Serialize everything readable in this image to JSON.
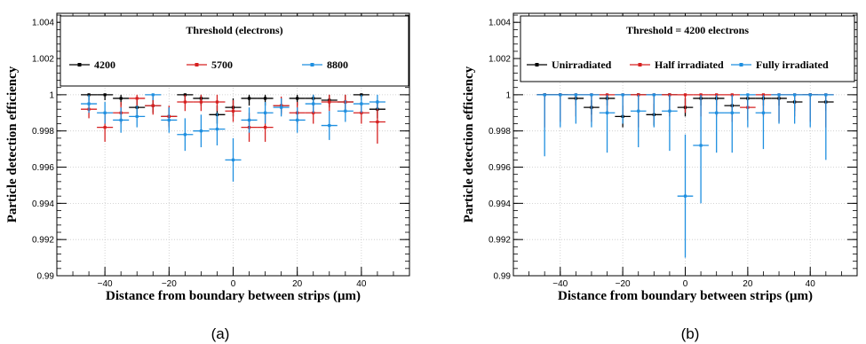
{
  "chart_data": [
    {
      "type": "scatter",
      "caption": "(a)",
      "xlabel": "Distance from boundary between strips (μm)",
      "ylabel": "Particle detection efficiency",
      "xlim": [
        -55,
        55
      ],
      "ylim": [
        0.99,
        1.0045
      ],
      "xticks": [
        -40,
        -20,
        0,
        20,
        40
      ],
      "xtick_labels": [
        "−40",
        "−20",
        "0",
        "20",
        "40"
      ],
      "yticks": [
        0.99,
        0.992,
        0.994,
        0.996,
        0.998,
        1.0,
        1.002,
        1.004
      ],
      "ytick_labels": [
        "0.99",
        "0.992",
        "0.994",
        "0.996",
        "0.998",
        "1",
        "1.002",
        "1.004"
      ],
      "grid": true,
      "legend_title": "Threshold (electrons)",
      "legend_position": "top",
      "series": [
        {
          "name": "4200",
          "color": "#000000",
          "xerr": 2.5,
          "x": [
            -45,
            -40,
            -35,
            -30,
            -25,
            -20,
            -15,
            -10,
            -5,
            0,
            5,
            10,
            15,
            20,
            25,
            30,
            35,
            40,
            45
          ],
          "y": [
            1.0,
            1.0,
            0.9998,
            0.9993,
            0.9994,
            0.9988,
            1.0,
            0.9998,
            0.9989,
            0.9993,
            0.9998,
            0.9998,
            0.9994,
            0.9998,
            0.9998,
            0.9997,
            0.9996,
            1.0,
            0.9992
          ],
          "err": [
            0.0003,
            0.0003,
            0.0004,
            0.0004,
            0.0004,
            0.0005,
            0.0003,
            0.0004,
            0.0005,
            0.0005,
            0.0004,
            0.0004,
            0.0004,
            0.0004,
            0.0004,
            0.0004,
            0.0004,
            0.0003,
            0.0005
          ]
        },
        {
          "name": "5700",
          "color": "#d62020",
          "xerr": 2.5,
          "x": [
            -45,
            -40,
            -35,
            -30,
            -25,
            -20,
            -15,
            -10,
            -5,
            0,
            5,
            10,
            15,
            20,
            25,
            30,
            35,
            40,
            45
          ],
          "y": [
            0.9992,
            0.9982,
            0.999,
            0.9998,
            0.9994,
            0.9988,
            0.9996,
            0.9996,
            0.9996,
            0.9991,
            0.9982,
            0.9982,
            0.9994,
            0.999,
            0.999,
            0.9996,
            0.9996,
            0.999,
            0.9985
          ],
          "err": [
            0.0005,
            0.0008,
            0.0006,
            0.0004,
            0.0005,
            0.0006,
            0.0005,
            0.0005,
            0.0005,
            0.0006,
            0.0008,
            0.0008,
            0.0005,
            0.0006,
            0.0006,
            0.0005,
            0.0005,
            0.0006,
            0.0012
          ]
        },
        {
          "name": "8800",
          "color": "#1e8fe0",
          "xerr": 2.5,
          "x": [
            -45,
            -40,
            -35,
            -30,
            -25,
            -20,
            -15,
            -10,
            -5,
            0,
            5,
            10,
            15,
            20,
            25,
            30,
            35,
            40,
            45
          ],
          "y": [
            0.9995,
            0.999,
            0.9986,
            0.9988,
            1.0,
            0.9986,
            0.9978,
            0.998,
            0.9981,
            0.9964,
            0.9986,
            0.999,
            0.9993,
            0.9986,
            0.9995,
            0.9983,
            0.9991,
            0.9995,
            0.9996
          ],
          "err": [
            0.0005,
            0.0006,
            0.0007,
            0.0006,
            0.0003,
            0.0007,
            0.0009,
            0.0009,
            0.0009,
            0.0012,
            0.0007,
            0.0006,
            0.0005,
            0.0007,
            0.0005,
            0.0008,
            0.0006,
            0.0005,
            0.0004
          ]
        }
      ]
    },
    {
      "type": "scatter",
      "caption": "(b)",
      "xlabel": "Distance from boundary between strips (μm)",
      "ylabel": "Particle detection efficiency",
      "xlim": [
        -55,
        55
      ],
      "ylim": [
        0.99,
        1.0045
      ],
      "xticks": [
        -40,
        -20,
        0,
        20,
        40
      ],
      "xtick_labels": [
        "−40",
        "−20",
        "0",
        "20",
        "40"
      ],
      "yticks": [
        0.99,
        0.992,
        0.994,
        0.996,
        0.998,
        1.0,
        1.002,
        1.004
      ],
      "ytick_labels": [
        "0.99",
        "0.992",
        "0.994",
        "0.996",
        "0.998",
        "1",
        "1.002",
        "1.004"
      ],
      "grid": true,
      "legend_title": "Threshold = 4200 electrons",
      "legend_position": "top",
      "series": [
        {
          "name": "Unirradiated",
          "color": "#000000",
          "xerr": 2.5,
          "x": [
            -45,
            -40,
            -35,
            -30,
            -25,
            -20,
            -15,
            -10,
            -5,
            0,
            5,
            10,
            15,
            20,
            25,
            30,
            35,
            40,
            45
          ],
          "y": [
            1.0,
            1.0,
            0.9998,
            0.9993,
            0.9998,
            0.9988,
            1.0,
            0.9989,
            1.0,
            0.9993,
            0.9998,
            0.9998,
            0.9994,
            0.9998,
            0.9998,
            0.9998,
            0.9996,
            1.0,
            0.9996
          ],
          "err": [
            0.0003,
            0.0003,
            0.0004,
            0.0004,
            0.0004,
            0.0006,
            0.0003,
            0.0006,
            0.0003,
            0.0005,
            0.0004,
            0.0004,
            0.0005,
            0.0004,
            0.0004,
            0.0004,
            0.0005,
            0.0003,
            0.0005
          ]
        },
        {
          "name": "Half irradiated",
          "color": "#d62020",
          "xerr": 2.5,
          "x": [
            -45,
            -40,
            -35,
            -30,
            -25,
            -20,
            -15,
            -10,
            -5,
            0,
            5,
            10,
            15,
            20,
            25,
            30,
            35,
            40,
            45
          ],
          "y": [
            1.0,
            1.0,
            1.0,
            1.0,
            1.0,
            1.0,
            1.0,
            1.0,
            1.0,
            1.0,
            1.0,
            1.0,
            1.0,
            0.9993,
            1.0,
            1.0,
            1.0,
            1.0,
            1.0
          ],
          "err": [
            0.0018,
            0.0015,
            0.0012,
            0.0015,
            0.001,
            0.0012,
            0.0018,
            0.0015,
            0.0012,
            0.001,
            0.0012,
            0.0012,
            0.0015,
            0.0007,
            0.0012,
            0.0015,
            0.0012,
            0.0015,
            0.0018
          ]
        },
        {
          "name": "Fully irradiated",
          "color": "#1e8fe0",
          "xerr": 2.5,
          "x": [
            -45,
            -40,
            -35,
            -30,
            -25,
            -20,
            -15,
            -10,
            -5,
            0,
            5,
            10,
            15,
            20,
            25,
            30,
            35,
            40,
            45
          ],
          "y": [
            1.0,
            1.0,
            1.0,
            1.0,
            0.999,
            1.0,
            0.9991,
            1.0,
            0.9991,
            0.9944,
            0.9972,
            0.999,
            0.999,
            1.0,
            0.999,
            1.0,
            1.0,
            1.0,
            1.0
          ],
          "err": [
            0.0034,
            0.0018,
            0.0016,
            0.0018,
            0.0022,
            0.0016,
            0.002,
            0.0018,
            0.0022,
            0.0034,
            0.0032,
            0.0022,
            0.0022,
            0.0018,
            0.002,
            0.0016,
            0.0016,
            0.0018,
            0.0036
          ]
        }
      ]
    }
  ]
}
